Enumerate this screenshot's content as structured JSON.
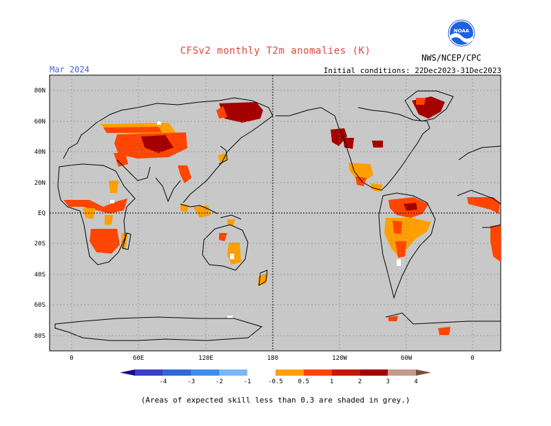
{
  "title": "CFSv2 monthly T2m anomalies (K)",
  "period": "Mar 2024",
  "initial_conditions": "Initial conditions: 22Dec2023-31Dec2023",
  "agency": "NWS/NCEP/CPC",
  "logo_text": "NOAA",
  "footnote": "(Areas of expected skill less than 0.3 are shaded in grey.)",
  "colors": {
    "land_no_skill": "#c8c8c8",
    "ocean": "#c8c8c8",
    "white_land": "#ffffff",
    "c_0_5_1": "#ff9f00",
    "c_1_2": "#ff4500",
    "c_2_3": "#a50000",
    "c_3_4": "#c49a8c",
    "c_gt4": "#7a4e3e"
  },
  "axes": {
    "lat_labels": [
      "80N",
      "60N",
      "40N",
      "20N",
      "EQ",
      "20S",
      "40S",
      "60S",
      "80S"
    ],
    "lon_labels": [
      "0",
      "60E",
      "120E",
      "180",
      "120W",
      "60W",
      "0"
    ]
  },
  "colorbar": {
    "labels": [
      "-4",
      "-3",
      "-2",
      "-1",
      "-0.5",
      "0.5",
      "1",
      "2",
      "3",
      "4"
    ],
    "colors": [
      "#1c0a8c",
      "#3a3fc9",
      "#2f69d9",
      "#3b8ef0",
      "#7ab8f5",
      "#ffffff",
      "#ff9f00",
      "#ff4500",
      "#c21a00",
      "#a50000",
      "#c49a8c",
      "#7a4e3e"
    ]
  }
}
